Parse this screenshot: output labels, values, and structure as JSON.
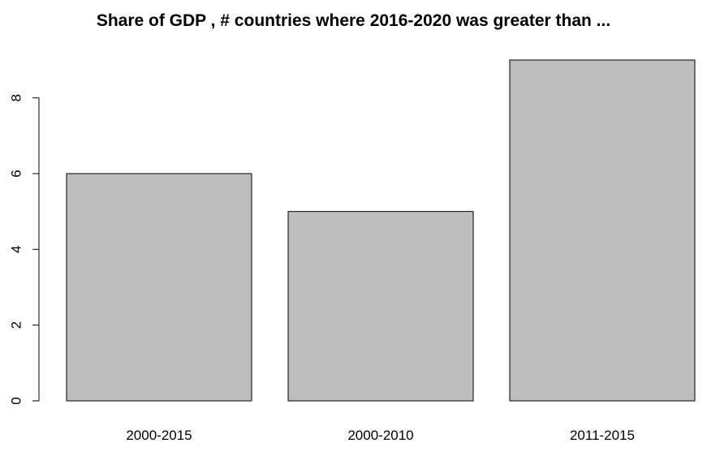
{
  "chart_data": {
    "type": "bar",
    "title": "Share of GDP , # countries where 2016-2020 was greater than ...",
    "xlabel": "",
    "ylabel": "",
    "categories": [
      "2000-2015",
      "2000-2010",
      "2011-2015"
    ],
    "values": [
      6,
      5,
      9
    ],
    "ylim": [
      0,
      9
    ],
    "yticks": [
      0,
      2,
      4,
      6,
      8
    ],
    "grid": false,
    "legend": "none",
    "colors": {
      "bar_fill": "#bebebe",
      "bar_stroke": "#000000",
      "axis": "#000000",
      "background": "#ffffff"
    }
  }
}
